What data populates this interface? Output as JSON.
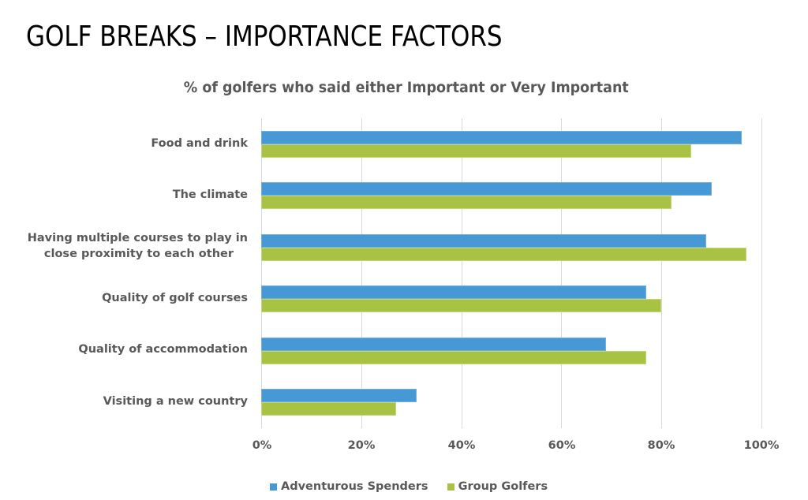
{
  "page": {
    "title": "GOLF BREAKS – IMPORTANCE FACTORS"
  },
  "chart_data": {
    "type": "bar",
    "orientation": "horizontal",
    "title": "% of golfers who said either Important or Very Important",
    "categories": [
      "Food and drink",
      "The climate",
      "Having multiple courses to play in close proximity to each other",
      "Quality of golf courses",
      "Quality of accommodation",
      "Visiting a new country"
    ],
    "series": [
      {
        "name": "Adventurous Spenders",
        "color": "#4699d5",
        "values": [
          96,
          90,
          89,
          77,
          69,
          31
        ]
      },
      {
        "name": "Group Golfers",
        "color": "#a8c343",
        "values": [
          86,
          82,
          97,
          80,
          77,
          27
        ]
      }
    ],
    "xlabel": "",
    "ylabel": "",
    "xlim": [
      0,
      100
    ],
    "x_ticks": [
      "0%",
      "20%",
      "40%",
      "60%",
      "80%",
      "100%"
    ],
    "grid": true,
    "legend_position": "bottom"
  },
  "labels": {
    "cat0": "Food and drink",
    "cat1": "The climate",
    "cat2a": "Having multiple courses to play in",
    "cat2b": "close proximity to each other",
    "cat3": "Quality of golf courses",
    "cat4": "Quality of accommodation",
    "cat5": "Visiting a new country"
  }
}
